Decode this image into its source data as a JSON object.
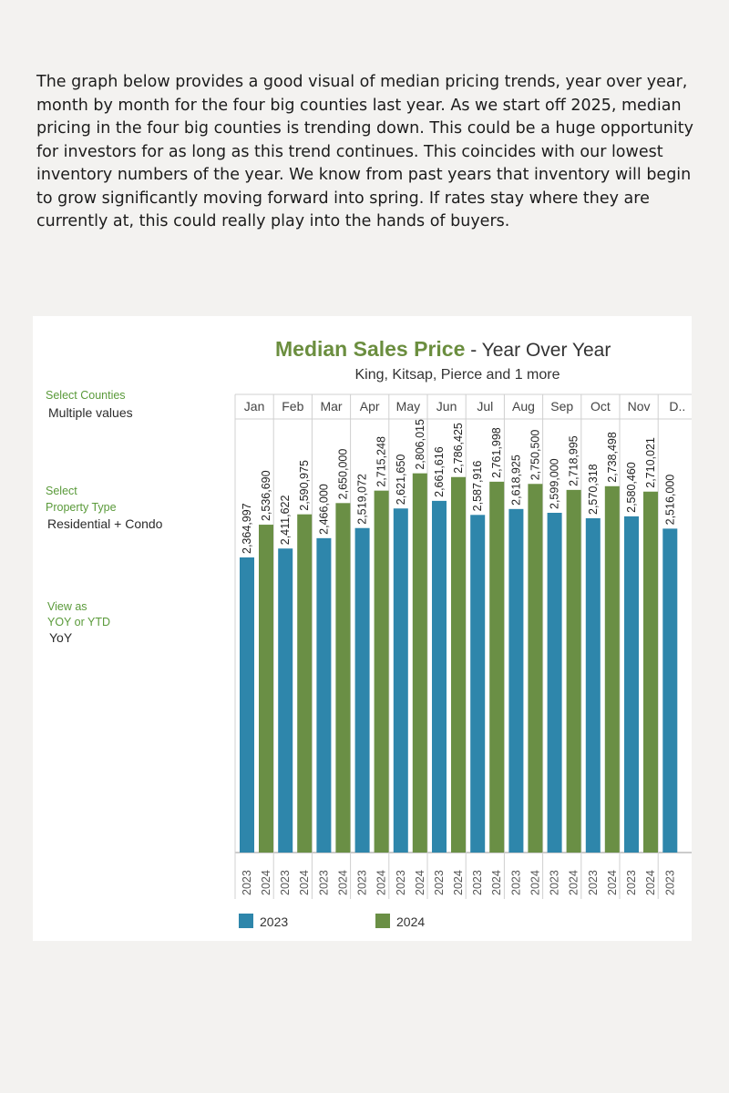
{
  "intro_text": "The graph below provides a good visual of median pricing trends, year over year, month by month for the four big counties last year. As we start off 2025, median pricing in the four big counties is trending down. This could be a huge opportunity for investors for as long as this trend continues. This coincides with our lowest inventory numbers of the year. We know from past years that inventory will begin to grow significantly moving forward into spring. If rates stay where they are currently at, this could really play into the hands of buyers.",
  "filters": {
    "counties_label": "Select Counties",
    "counties_value": "Multiple values",
    "property_label_1": "Select",
    "property_label_2": "Property Type",
    "property_value": "Residential + Condo",
    "view_label_1": "View as",
    "view_label_2": "YOY or YTD",
    "view_value": "YoY"
  },
  "colors": {
    "series_2023": "#2e86ab",
    "series_2024": "#6a8f45"
  },
  "chart_data": {
    "type": "bar",
    "title": "Median Sales Price",
    "title_suffix": " - Year Over Year",
    "subtitle": "King, Kitsap, Pierce and 1 more",
    "categories": [
      "Jan",
      "Feb",
      "Mar",
      "Apr",
      "May",
      "Jun",
      "Jul",
      "Aug",
      "Sep",
      "Oct",
      "Nov",
      "D.."
    ],
    "series": [
      {
        "name": "2023",
        "values": [
          2364997,
          2411622,
          2466000,
          2519072,
          2621650,
          2661616,
          2587916,
          2618925,
          2599000,
          2570318,
          2580460,
          2516000
        ]
      },
      {
        "name": "2024",
        "values": [
          2536690,
          2590975,
          2650000,
          2715248,
          2806015,
          2786425,
          2761998,
          2750500,
          2718995,
          2738498,
          2710021,
          null
        ]
      }
    ],
    "value_labels_2023": [
      "2,364,997",
      "2,411,622",
      "2,466,000",
      "2,519,072",
      "2,621,650",
      "2,661,616",
      "2,587,916",
      "2,618,925",
      "2,599,000",
      "2,570,318",
      "2,580,460",
      "2,516,000"
    ],
    "value_labels_2024": [
      "2,536,690",
      "2,590,975",
      "2,650,000",
      "2,715,248",
      "2,806,015",
      "2,786,425",
      "2,761,998",
      "2,750,500",
      "2,718,995",
      "2,738,498",
      "2,710,021",
      ""
    ],
    "legend": [
      "2023",
      "2024"
    ],
    "legend_position": "bottom-left",
    "grid": false
  }
}
